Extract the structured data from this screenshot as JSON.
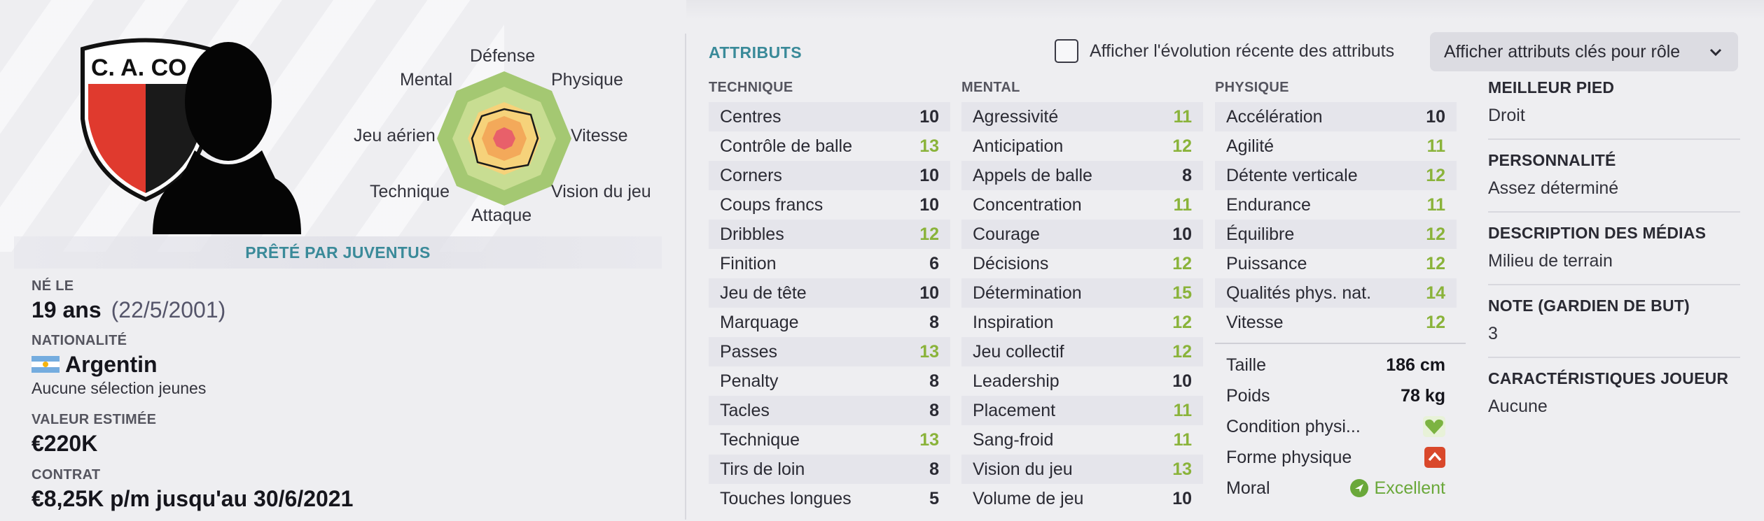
{
  "player": {
    "club_crest_text": "C. A. CO",
    "loan_banner": "PRÊTÉ PAR JUVENTUS",
    "born_label": "NÉ LE",
    "age": "19 ans",
    "dob": "(22/5/2001)",
    "nationality_label": "NATIONALITÉ",
    "nationality": "Argentin",
    "youth_caps": "Aucune sélection jeunes",
    "value_label": "VALEUR ESTIMÉE",
    "value": "€220K",
    "contract_label": "CONTRAT",
    "contract": "€8,25K p/m jusqu'au 30/6/2021"
  },
  "radar": {
    "labels": {
      "top": "Défense",
      "top_right": "Physique",
      "right": "Vitesse",
      "bottom_right": "Vision du jeu",
      "bottom": "Attaque",
      "bottom_left": "Technique",
      "left": "Jeu aérien",
      "top_left": "Mental"
    }
  },
  "attributes": {
    "title": "ATTRIBUTS",
    "evolution_toggle": "Afficher l'évolution récente des attributs",
    "role_dropdown": "Afficher attributs clés pour rôle",
    "technique": {
      "header": "TECHNIQUE",
      "items": [
        {
          "name": "Centres",
          "value": "10",
          "green": false
        },
        {
          "name": "Contrôle de balle",
          "value": "13",
          "green": true
        },
        {
          "name": "Corners",
          "value": "10",
          "green": false
        },
        {
          "name": "Coups francs",
          "value": "10",
          "green": false
        },
        {
          "name": "Dribbles",
          "value": "12",
          "green": true
        },
        {
          "name": "Finition",
          "value": "6",
          "green": false
        },
        {
          "name": "Jeu de tête",
          "value": "10",
          "green": false
        },
        {
          "name": "Marquage",
          "value": "8",
          "green": false
        },
        {
          "name": "Passes",
          "value": "13",
          "green": true
        },
        {
          "name": "Penalty",
          "value": "8",
          "green": false
        },
        {
          "name": "Tacles",
          "value": "8",
          "green": false
        },
        {
          "name": "Technique",
          "value": "13",
          "green": true
        },
        {
          "name": "Tirs de loin",
          "value": "8",
          "green": false
        },
        {
          "name": "Touches longues",
          "value": "5",
          "green": false
        }
      ]
    },
    "mental": {
      "header": "MENTAL",
      "items": [
        {
          "name": "Agressivité",
          "value": "11",
          "green": true
        },
        {
          "name": "Anticipation",
          "value": "12",
          "green": true
        },
        {
          "name": "Appels de balle",
          "value": "8",
          "green": false
        },
        {
          "name": "Concentration",
          "value": "11",
          "green": true
        },
        {
          "name": "Courage",
          "value": "10",
          "green": false
        },
        {
          "name": "Décisions",
          "value": "12",
          "green": true
        },
        {
          "name": "Détermination",
          "value": "15",
          "green": true
        },
        {
          "name": "Inspiration",
          "value": "12",
          "green": true
        },
        {
          "name": "Jeu collectif",
          "value": "12",
          "green": true
        },
        {
          "name": "Leadership",
          "value": "10",
          "green": false
        },
        {
          "name": "Placement",
          "value": "11",
          "green": true
        },
        {
          "name": "Sang-froid",
          "value": "11",
          "green": true
        },
        {
          "name": "Vision du jeu",
          "value": "13",
          "green": true
        },
        {
          "name": "Volume de jeu",
          "value": "10",
          "green": false
        }
      ]
    },
    "physique": {
      "header": "PHYSIQUE",
      "items": [
        {
          "name": "Accélération",
          "value": "10",
          "green": false
        },
        {
          "name": "Agilité",
          "value": "11",
          "green": true
        },
        {
          "name": "Détente verticale",
          "value": "12",
          "green": true
        },
        {
          "name": "Endurance",
          "value": "11",
          "green": true
        },
        {
          "name": "Équilibre",
          "value": "12",
          "green": true
        },
        {
          "name": "Puissance",
          "value": "12",
          "green": true
        },
        {
          "name": "Qualités phys. nat.",
          "value": "14",
          "green": true
        },
        {
          "name": "Vitesse",
          "value": "12",
          "green": true
        }
      ]
    }
  },
  "physical_misc": {
    "height_label": "Taille",
    "height": "186 cm",
    "weight_label": "Poids",
    "weight": "78 kg",
    "condition_label": "Condition physi...",
    "condition_icon": "heart-icon",
    "form_label": "Forme physique",
    "form_icon": "arrow-up-icon",
    "morale_label": "Moral",
    "morale": "Excellent"
  },
  "side": {
    "foot_label": "MEILLEUR PIED",
    "foot": "Droit",
    "personality_label": "PERSONNALITÉ",
    "personality": "Assez déterminé",
    "media_label": "DESCRIPTION DES MÉDIAS",
    "media": "Milieu de terrain",
    "gk_label": "NOTE (GARDIEN DE BUT)",
    "gk": "3",
    "traits_label": "CARACTÉRISTIQUES JOUEUR",
    "traits": "Aucune"
  },
  "colors": {
    "accent": "#3a8a99",
    "good_value": "#8ab33a",
    "crest_red": "#e03a2e",
    "crest_black": "#1a1a1a"
  }
}
